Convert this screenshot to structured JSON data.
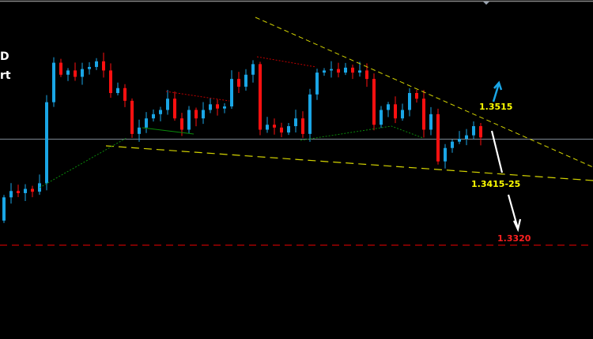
{
  "chart_data": {
    "type": "candlestick",
    "ylim": [
      1.3187,
      1.3668
    ],
    "grid": false,
    "colors": {
      "bull": "#1aa6e6",
      "bear": "#ff1010",
      "background": "#000000",
      "current_price_line": "#7f8a95",
      "trendline": "#d4d400",
      "target_line": "#c00000"
    },
    "first_open": 1.3355,
    "closes": [
      1.3388,
      1.3397,
      1.3394,
      1.34,
      1.3396,
      1.3408,
      1.3523,
      1.3579,
      1.3562,
      1.3568,
      1.3559,
      1.357,
      1.3573,
      1.3581,
      1.3568,
      1.3536,
      1.3543,
      1.3525,
      1.3478,
      1.3487,
      1.35,
      1.3506,
      1.3512,
      1.3528,
      1.35,
      1.3484,
      1.3512,
      1.35,
      1.3512,
      1.352,
      1.3514,
      1.3517,
      1.3556,
      1.3545,
      1.3562,
      1.3577,
      1.3484,
      1.3491,
      1.3487,
      1.348,
      1.3489,
      1.35,
      1.3478,
      1.3534,
      1.3565,
      1.3568,
      1.357,
      1.3565,
      1.3572,
      1.3565,
      1.3568,
      1.3556,
      1.3491,
      1.3512,
      1.352,
      1.35,
      1.3512,
      1.3536,
      1.3528,
      1.3484,
      1.3506,
      1.3439,
      1.3458,
      1.3467,
      1.3471,
      1.3476,
      1.3489,
      1.3473
    ],
    "current_price": 1.3471,
    "annotations": [
      {
        "text": "1.3515",
        "color": "#ffff00",
        "arrow": "up",
        "arrow_color": "#1aa6e6"
      },
      {
        "text": "1.3415-25",
        "color": "#ffff00",
        "arrow": "down",
        "arrow_color": "#ffffff"
      },
      {
        "text": "1.3320",
        "color": "#ff2020",
        "level": 1.332
      }
    ]
  },
  "side_text": {
    "line1": "D",
    "line2": "rt"
  }
}
